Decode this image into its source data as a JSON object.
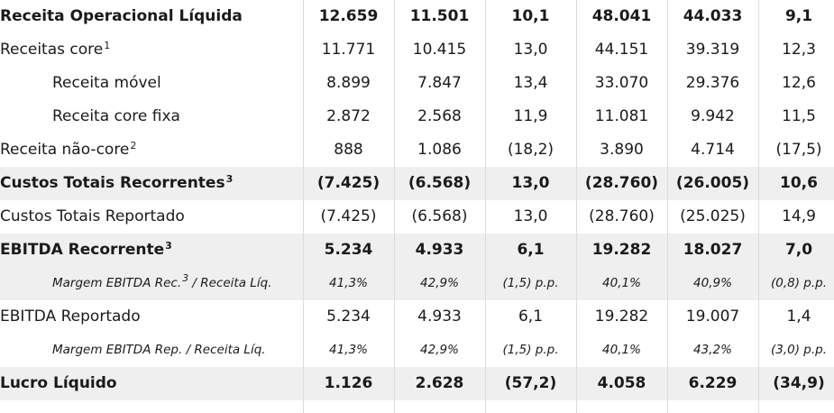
{
  "rows": [
    {
      "label": "Receita Operacional Líquida",
      "sup": "",
      "v1": "12.659",
      "v2": "11.501",
      "v3": "10,1",
      "v4": "48.041",
      "v5": "44.033",
      "v6": "9,1"
    },
    {
      "label": "Receitas core",
      "sup": "1",
      "v1": "11.771",
      "v2": "10.415",
      "v3": "13,0",
      "v4": "44.151",
      "v5": "39.319",
      "v6": "12,3"
    },
    {
      "label": "Receita móvel",
      "sup": "",
      "v1": "8.899",
      "v2": "7.847",
      "v3": "13,4",
      "v4": "33.070",
      "v5": "29.376",
      "v6": "12,6"
    },
    {
      "label": "Receita core fixa",
      "sup": "",
      "v1": "2.872",
      "v2": "2.568",
      "v3": "11,9",
      "v4": "11.081",
      "v5": "9.942",
      "v6": "11,5"
    },
    {
      "label": "Receita não-core",
      "sup": "2",
      "v1": "888",
      "v2": "1.086",
      "v3": "(18,2)",
      "v4": "3.890",
      "v5": "4.714",
      "v6": "(17,5)"
    },
    {
      "label": "Custos Totais Recorrentes",
      "sup": "3",
      "v1": "(7.425)",
      "v2": "(6.568)",
      "v3": "13,0",
      "v4": "(28.760)",
      "v5": "(26.005)",
      "v6": "10,6"
    },
    {
      "label": "Custos Totais Reportado",
      "sup": "",
      "v1": "(7.425)",
      "v2": "(6.568)",
      "v3": "13,0",
      "v4": "(28.760)",
      "v5": "(25.025)",
      "v6": "14,9"
    },
    {
      "label": "EBITDA Recorrente",
      "sup": "3",
      "v1": "5.234",
      "v2": "4.933",
      "v3": "6,1",
      "v4": "19.282",
      "v5": "18.027",
      "v6": "7,0"
    },
    {
      "label": "Margem EBITDA Rec.",
      "sup": "3",
      "label_suffix": " / Receita Líq.",
      "v1": "41,3%",
      "v2": "42,9%",
      "v3": "(1,5) p.p.",
      "v4": "40,1%",
      "v5": "40,9%",
      "v6": "(0,8) p.p."
    },
    {
      "label": "EBITDA Reportado",
      "sup": "",
      "v1": "5.234",
      "v2": "4.933",
      "v3": "6,1",
      "v4": "19.282",
      "v5": "19.007",
      "v6": "1,4"
    },
    {
      "label": "Margem EBITDA Rep. / Receita Líq.",
      "sup": "",
      "v1": "41,3%",
      "v2": "42,9%",
      "v3": "(1,5) p.p.",
      "v4": "40,1%",
      "v5": "43,2%",
      "v6": "(3,0) p.p."
    },
    {
      "label": "Lucro Líquido",
      "sup": "",
      "v1": "1.126",
      "v2": "2.628",
      "v3": "(57,2)",
      "v4": "4.058",
      "v5": "6.229",
      "v6": "(34,9)"
    }
  ]
}
